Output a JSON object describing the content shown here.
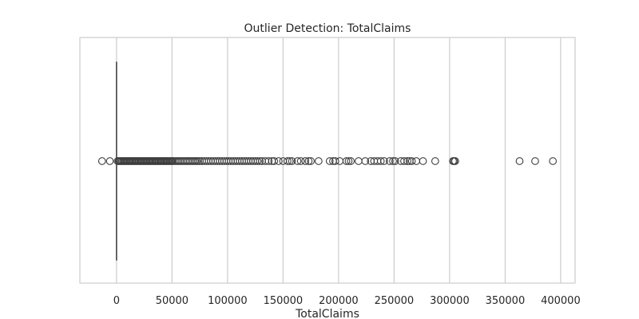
{
  "chart_data": {
    "type": "box",
    "title": "Outlier Detection: TotalClaims",
    "xlabel": "TotalClaims",
    "ylabel": "",
    "orientation": "horizontal",
    "xlim": [
      -33000,
      413000
    ],
    "xticks": [
      0,
      50000,
      100000,
      150000,
      200000,
      250000,
      300000,
      350000,
      400000
    ],
    "xtick_labels": [
      "0",
      "50000",
      "100000",
      "150000",
      "200000",
      "250000",
      "300000",
      "350000",
      "400000"
    ],
    "grid": true,
    "box": {
      "whisker_low": 0,
      "q1": 0,
      "median": 0,
      "q3": 0,
      "whisker_high": 0
    },
    "outliers": [
      -13000,
      -6000,
      1000,
      2000,
      3000,
      4000,
      5000,
      6000,
      7000,
      8000,
      9000,
      10000,
      11000,
      12000,
      13000,
      14000,
      15000,
      16000,
      17000,
      18000,
      19000,
      20000,
      21000,
      22000,
      23000,
      24000,
      25000,
      26000,
      27000,
      28000,
      29000,
      30000,
      31000,
      32000,
      33000,
      34000,
      35000,
      36000,
      37000,
      38000,
      39000,
      40000,
      41000,
      42000,
      43000,
      44000,
      45000,
      46000,
      47000,
      48000,
      49000,
      50000,
      51000,
      52500,
      54000,
      55500,
      57000,
      58500,
      60000,
      61500,
      63000,
      64500,
      66000,
      67500,
      69000,
      70500,
      72000,
      73500,
      75000,
      77000,
      79000,
      81000,
      83000,
      85000,
      87000,
      89000,
      91000,
      93000,
      95000,
      97000,
      99000,
      101000,
      103000,
      105000,
      107000,
      109000,
      111000,
      113000,
      115000,
      117000,
      119000,
      121000,
      123000,
      125000,
      127000,
      129000,
      131000,
      134000,
      137000,
      140000,
      142000,
      146000,
      150000,
      154000,
      156000,
      158000,
      163000,
      166000,
      170000,
      173000,
      175000,
      182000,
      192000,
      195000,
      197000,
      201000,
      207000,
      209000,
      211000,
      218000,
      224000,
      229000,
      232000,
      235000,
      238000,
      241000,
      246000,
      249000,
      251000,
      256000,
      259000,
      262000,
      264000,
      266000,
      270000,
      276000,
      287000,
      303000,
      304000,
      305000,
      363000,
      377000,
      393000
    ],
    "box_color": "#4c72b0",
    "line_color": "#4d4d4d",
    "grid_color": "#cccccc",
    "frame_color": "#cccccc"
  }
}
